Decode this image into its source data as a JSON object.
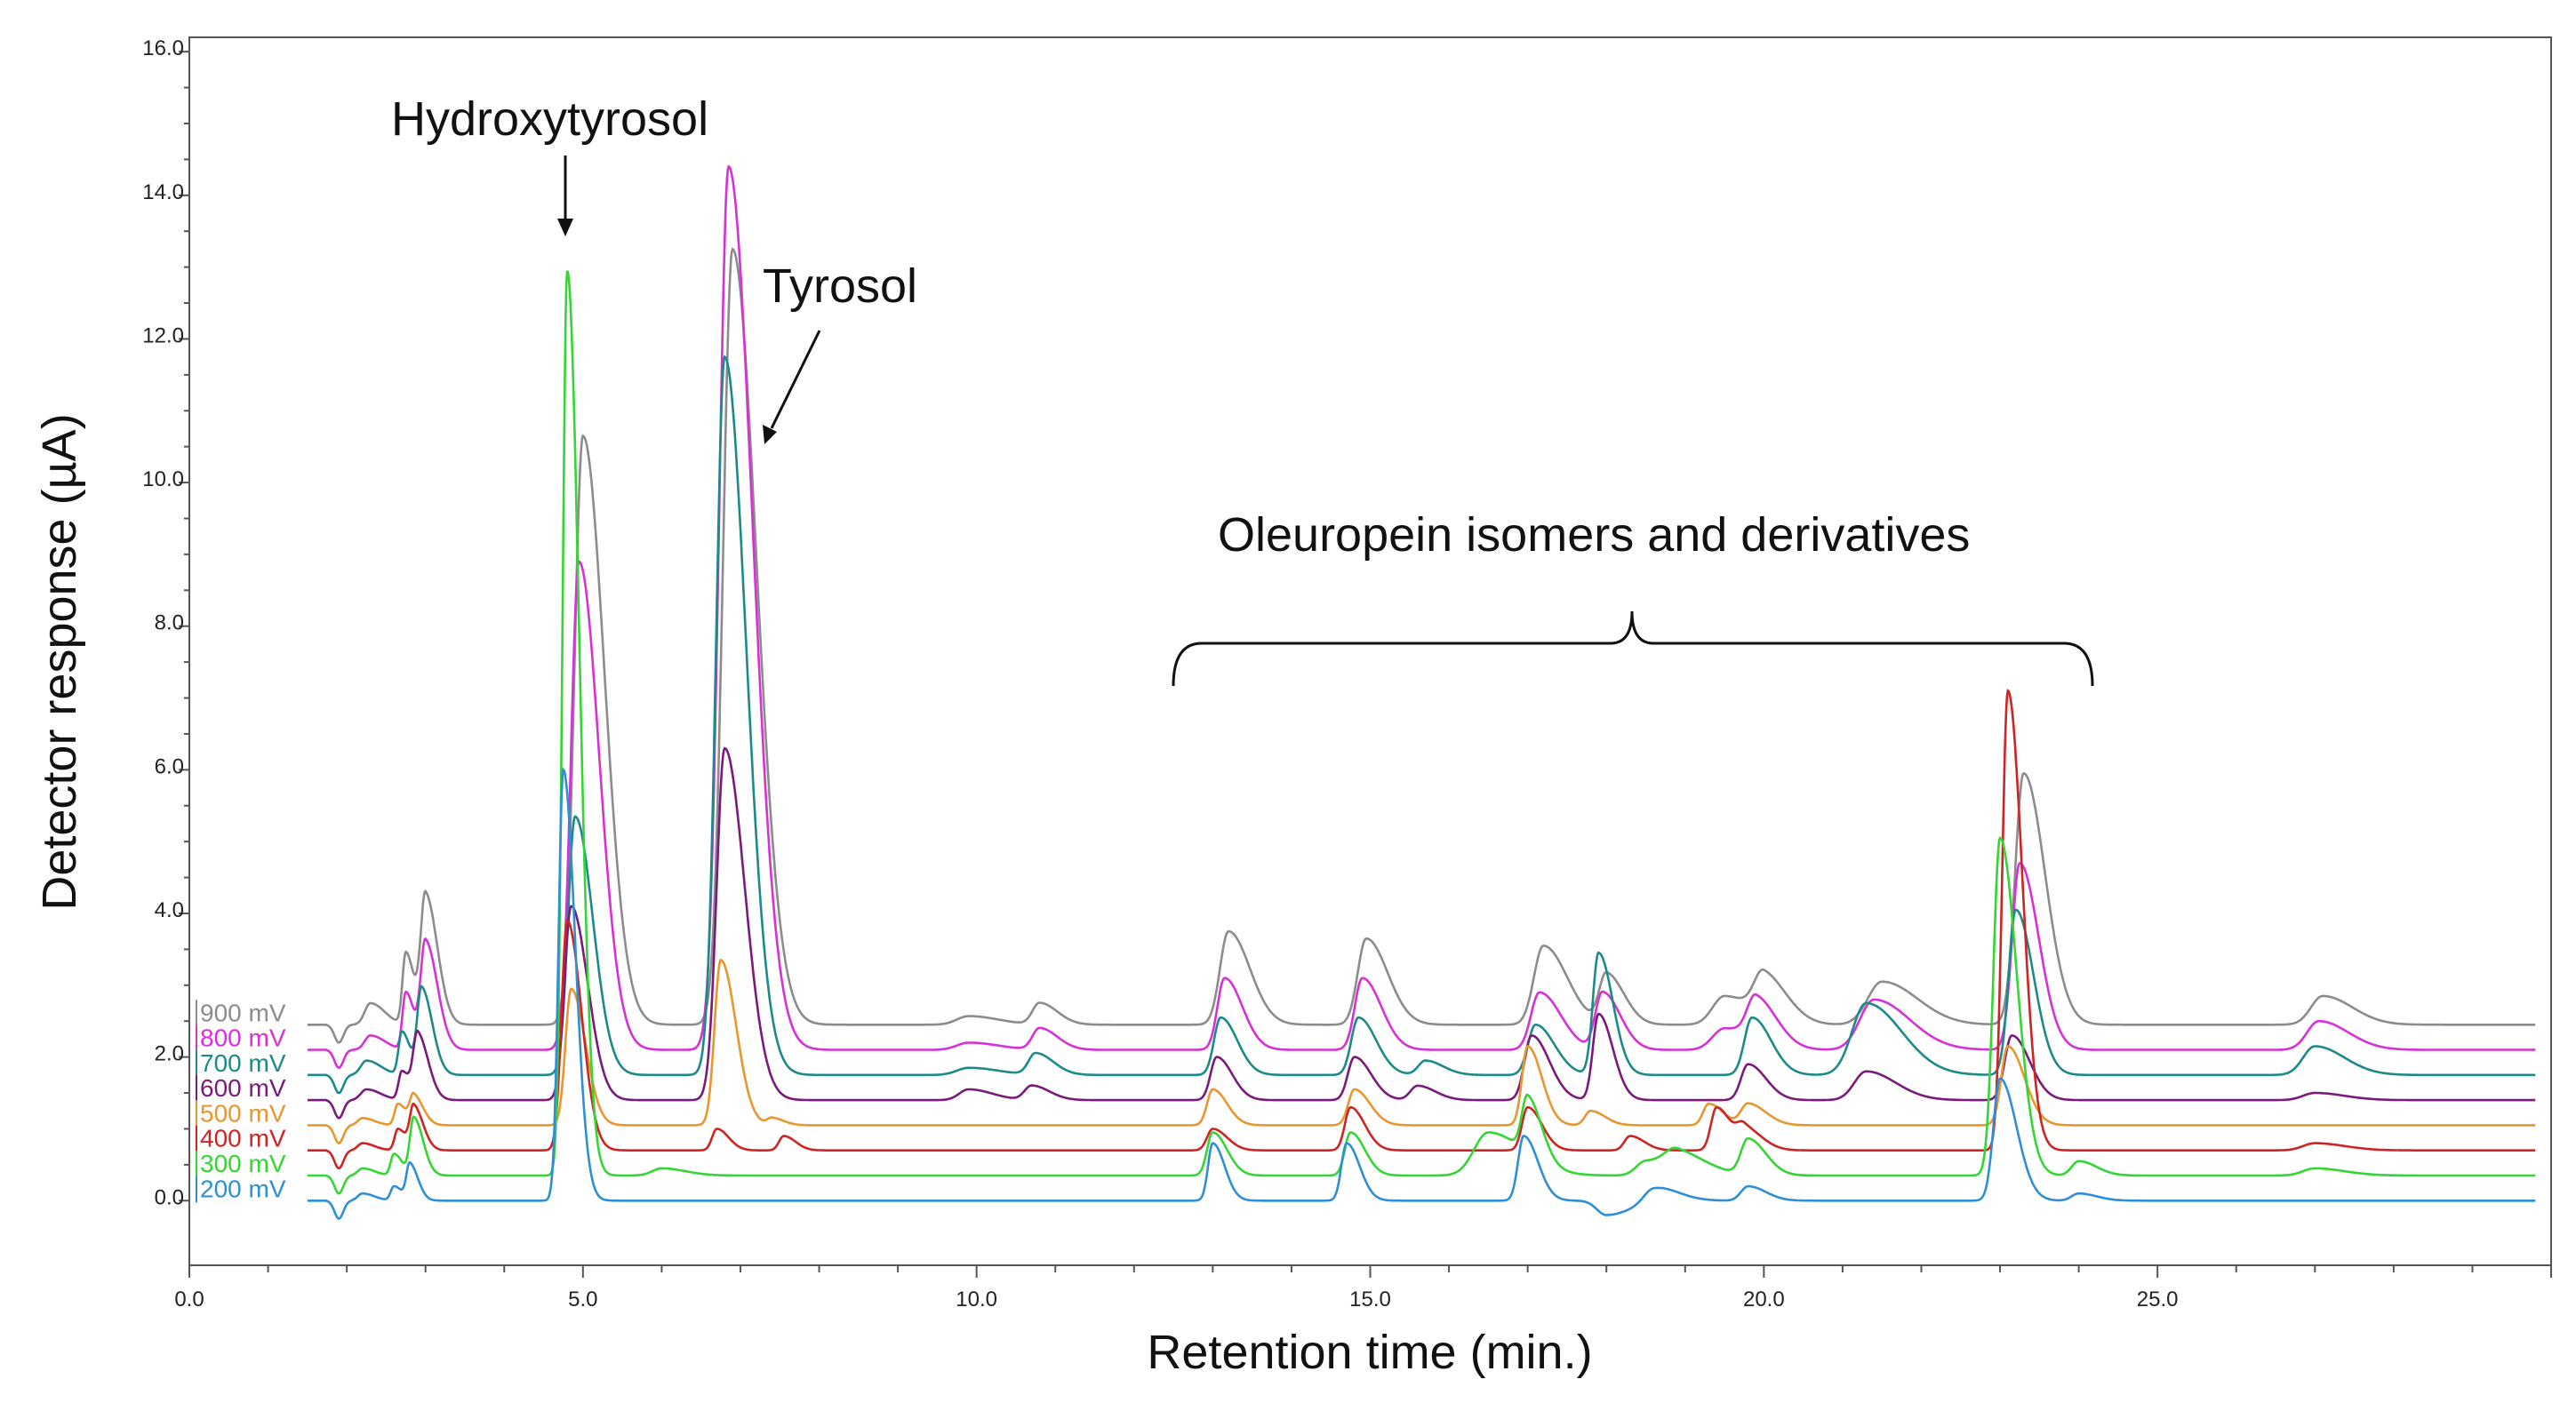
{
  "chart_data": {
    "type": "line",
    "title": "",
    "xlabel": "Retention time (min.)",
    "ylabel": "Detector response (µA)",
    "xlim": [
      0,
      30
    ],
    "ylim": [
      -0.9,
      16.2
    ],
    "x_ticks": [
      0,
      5,
      10,
      15,
      20,
      25
    ],
    "x_tick_labels": [
      "0.0",
      "5.0",
      "10.0",
      "15.0",
      "20.0",
      "25.0"
    ],
    "y_ticks": [
      0,
      2,
      4,
      6,
      8,
      10,
      12,
      14,
      16
    ],
    "y_tick_labels": [
      "0.0",
      "2.0",
      "4.0",
      "6.0",
      "8.0",
      "10.0",
      "12.0",
      "14.0",
      "16.0"
    ],
    "grid": false,
    "legend_position": "left, stacked at trace baselines",
    "annotations": {
      "hydroxytyrosol": "Hydroxytyrosol",
      "tyrosol": "Tyrosol",
      "oleuropein": "Oleuropein isomers and derivatives"
    },
    "series": [
      {
        "name": "900 mV",
        "color": "#8c8c8c",
        "baseline": 2.45,
        "peaks": [
          [
            2.3,
            0.3,
            0.12
          ],
          [
            2.75,
            1.0,
            0.07
          ],
          [
            3.0,
            1.8,
            0.1
          ],
          [
            5.0,
            8.2,
            0.18
          ],
          [
            6.9,
            10.8,
            0.2
          ],
          [
            9.9,
            0.12,
            0.25
          ],
          [
            10.8,
            0.3,
            0.15
          ],
          [
            13.2,
            1.3,
            0.18
          ],
          [
            14.95,
            1.2,
            0.18
          ],
          [
            17.2,
            1.1,
            0.2
          ],
          [
            18.0,
            0.7,
            0.15
          ],
          [
            19.5,
            0.4,
            0.25
          ],
          [
            20.0,
            0.6,
            0.2
          ],
          [
            21.5,
            0.6,
            0.3
          ],
          [
            23.3,
            3.5,
            0.18
          ],
          [
            27.1,
            0.4,
            0.25
          ]
        ]
      },
      {
        "name": "800 mV",
        "color": "#d631d6",
        "baseline": 2.1,
        "peaks": [
          [
            2.3,
            0.2,
            0.12
          ],
          [
            2.75,
            0.8,
            0.07
          ],
          [
            3.0,
            1.5,
            0.1
          ],
          [
            4.95,
            6.8,
            0.17
          ],
          [
            6.85,
            12.3,
            0.2
          ],
          [
            9.9,
            0.1,
            0.25
          ],
          [
            10.8,
            0.3,
            0.15
          ],
          [
            13.15,
            1.0,
            0.15
          ],
          [
            14.9,
            1.0,
            0.16
          ],
          [
            17.15,
            0.8,
            0.18
          ],
          [
            17.95,
            0.8,
            0.15
          ],
          [
            19.5,
            0.3,
            0.25
          ],
          [
            19.9,
            0.6,
            0.18
          ],
          [
            21.4,
            0.7,
            0.3
          ],
          [
            23.25,
            2.6,
            0.16
          ],
          [
            27.05,
            0.4,
            0.25
          ]
        ]
      },
      {
        "name": "700 mV",
        "color": "#1d8a8a",
        "baseline": 1.75,
        "peaks": [
          [
            2.25,
            0.2,
            0.12
          ],
          [
            2.7,
            0.6,
            0.07
          ],
          [
            2.95,
            1.2,
            0.09
          ],
          [
            4.9,
            3.6,
            0.15
          ],
          [
            6.8,
            10.0,
            0.18
          ],
          [
            9.9,
            0.1,
            0.25
          ],
          [
            10.75,
            0.3,
            0.15
          ],
          [
            13.1,
            0.8,
            0.14
          ],
          [
            14.85,
            0.8,
            0.15
          ],
          [
            15.7,
            0.2,
            0.15
          ],
          [
            17.1,
            0.7,
            0.16
          ],
          [
            17.9,
            1.7,
            0.12
          ],
          [
            19.85,
            0.8,
            0.16
          ],
          [
            21.3,
            1.0,
            0.3
          ],
          [
            23.2,
            2.3,
            0.15
          ],
          [
            27.0,
            0.4,
            0.25
          ]
        ]
      },
      {
        "name": "600 mV",
        "color": "#7a1a7a",
        "baseline": 1.4,
        "peaks": [
          [
            2.25,
            0.15,
            0.12
          ],
          [
            2.7,
            0.4,
            0.07
          ],
          [
            2.9,
            0.9,
            0.09
          ],
          [
            4.85,
            2.7,
            0.14
          ],
          [
            6.8,
            4.9,
            0.17
          ],
          [
            9.9,
            0.15,
            0.2
          ],
          [
            10.7,
            0.2,
            0.15
          ],
          [
            13.05,
            0.6,
            0.13
          ],
          [
            14.8,
            0.6,
            0.14
          ],
          [
            15.6,
            0.2,
            0.15
          ],
          [
            17.05,
            0.9,
            0.15
          ],
          [
            17.9,
            1.2,
            0.12
          ],
          [
            19.8,
            0.5,
            0.15
          ],
          [
            21.3,
            0.4,
            0.25
          ],
          [
            23.15,
            0.9,
            0.15
          ],
          [
            27.0,
            0.1,
            0.25
          ]
        ]
      },
      {
        "name": "500 mV",
        "color": "#e8962e",
        "baseline": 1.05,
        "peaks": [
          [
            2.2,
            0.1,
            0.1
          ],
          [
            2.65,
            0.3,
            0.07
          ],
          [
            2.85,
            0.4,
            0.08
          ],
          [
            4.85,
            1.9,
            0.12
          ],
          [
            6.75,
            2.3,
            0.13
          ],
          [
            7.4,
            0.1,
            0.1
          ],
          [
            13.0,
            0.5,
            0.12
          ],
          [
            14.8,
            0.5,
            0.13
          ],
          [
            17.0,
            1.1,
            0.12
          ],
          [
            17.8,
            0.2,
            0.12
          ],
          [
            19.3,
            0.3,
            0.12
          ],
          [
            19.8,
            0.3,
            0.15
          ],
          [
            23.1,
            1.1,
            0.14
          ]
        ]
      },
      {
        "name": "400 mV",
        "color": "#cf2424",
        "baseline": 0.7,
        "peaks": [
          [
            2.2,
            0.1,
            0.1
          ],
          [
            2.65,
            0.3,
            0.07
          ],
          [
            2.85,
            0.6,
            0.08
          ],
          [
            4.8,
            3.2,
            0.12
          ],
          [
            6.7,
            0.3,
            0.1
          ],
          [
            7.55,
            0.2,
            0.1
          ],
          [
            13.0,
            0.3,
            0.12
          ],
          [
            14.75,
            0.6,
            0.12
          ],
          [
            17.0,
            0.6,
            0.12
          ],
          [
            18.3,
            0.2,
            0.12
          ],
          [
            19.4,
            0.6,
            0.12
          ],
          [
            19.75,
            0.3,
            0.15
          ],
          [
            23.1,
            6.4,
            0.12
          ],
          [
            27.0,
            0.1,
            0.25
          ]
        ]
      },
      {
        "name": "300 mV",
        "color": "#33d633",
        "baseline": 0.35,
        "peaks": [
          [
            2.2,
            0.1,
            0.1
          ],
          [
            2.6,
            0.3,
            0.07
          ],
          [
            2.85,
            0.8,
            0.08
          ],
          [
            4.8,
            12.6,
            0.1
          ],
          [
            6.0,
            0.1,
            0.2
          ],
          [
            13.0,
            0.6,
            0.12
          ],
          [
            14.75,
            0.6,
            0.12
          ],
          [
            16.5,
            0.6,
            0.3
          ],
          [
            17.0,
            0.8,
            0.12
          ],
          [
            18.5,
            0.2,
            0.2
          ],
          [
            18.9,
            0.3,
            0.25
          ],
          [
            19.8,
            0.5,
            0.15
          ],
          [
            23.0,
            4.7,
            0.14
          ],
          [
            24.0,
            0.2,
            0.15
          ],
          [
            27.0,
            0.1,
            0.25
          ]
        ]
      },
      {
        "name": "200 mV",
        "color": "#2e8fd6",
        "baseline": 0.0,
        "peaks": [
          [
            2.2,
            0.1,
            0.1
          ],
          [
            2.6,
            0.2,
            0.07
          ],
          [
            2.8,
            0.5,
            0.07
          ],
          [
            4.75,
            6.0,
            0.1
          ],
          [
            13.0,
            0.8,
            0.1
          ],
          [
            14.7,
            0.8,
            0.11
          ],
          [
            16.95,
            0.9,
            0.12
          ],
          [
            18.0,
            -0.2,
            0.2
          ],
          [
            18.6,
            0.2,
            0.2
          ],
          [
            19.8,
            0.2,
            0.15
          ],
          [
            23.0,
            1.7,
            0.14
          ],
          [
            24.0,
            0.1,
            0.15
          ]
        ]
      }
    ]
  }
}
